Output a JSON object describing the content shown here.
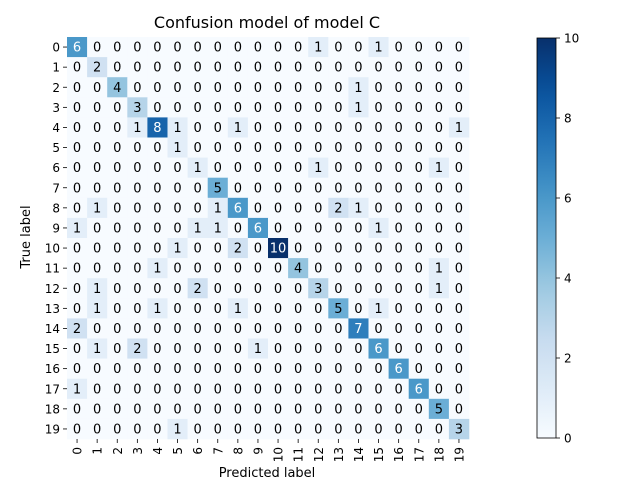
{
  "chart_data": {
    "type": "heatmap",
    "title": "Confusion model of model C",
    "xlabel": "Predicted label",
    "ylabel": "True label",
    "labels": [
      "0",
      "1",
      "2",
      "3",
      "4",
      "5",
      "6",
      "7",
      "8",
      "9",
      "10",
      "11",
      "12",
      "13",
      "14",
      "15",
      "16",
      "17",
      "18",
      "19"
    ],
    "matrix": [
      [
        6,
        0,
        0,
        0,
        0,
        0,
        0,
        0,
        0,
        0,
        0,
        0,
        1,
        0,
        0,
        1,
        0,
        0,
        0,
        0
      ],
      [
        0,
        2,
        0,
        0,
        0,
        0,
        0,
        0,
        0,
        0,
        0,
        0,
        0,
        0,
        0,
        0,
        0,
        0,
        0,
        0
      ],
      [
        0,
        0,
        4,
        0,
        0,
        0,
        0,
        0,
        0,
        0,
        0,
        0,
        0,
        0,
        1,
        0,
        0,
        0,
        0,
        0
      ],
      [
        0,
        0,
        0,
        3,
        0,
        0,
        0,
        0,
        0,
        0,
        0,
        0,
        0,
        0,
        1,
        0,
        0,
        0,
        0,
        0
      ],
      [
        0,
        0,
        0,
        1,
        8,
        1,
        0,
        0,
        1,
        0,
        0,
        0,
        0,
        0,
        0,
        0,
        0,
        0,
        0,
        1
      ],
      [
        0,
        0,
        0,
        0,
        0,
        1,
        0,
        0,
        0,
        0,
        0,
        0,
        0,
        0,
        0,
        0,
        0,
        0,
        0,
        0
      ],
      [
        0,
        0,
        0,
        0,
        0,
        0,
        1,
        0,
        0,
        0,
        0,
        0,
        1,
        0,
        0,
        0,
        0,
        0,
        1,
        0
      ],
      [
        0,
        0,
        0,
        0,
        0,
        0,
        0,
        5,
        0,
        0,
        0,
        0,
        0,
        0,
        0,
        0,
        0,
        0,
        0,
        0
      ],
      [
        0,
        1,
        0,
        0,
        0,
        0,
        0,
        1,
        6,
        0,
        0,
        0,
        0,
        2,
        1,
        0,
        0,
        0,
        0,
        0
      ],
      [
        1,
        0,
        0,
        0,
        0,
        0,
        1,
        1,
        0,
        6,
        0,
        0,
        0,
        0,
        0,
        1,
        0,
        0,
        0,
        0
      ],
      [
        0,
        0,
        0,
        0,
        0,
        1,
        0,
        0,
        2,
        0,
        10,
        0,
        0,
        0,
        0,
        0,
        0,
        0,
        0,
        0
      ],
      [
        0,
        0,
        0,
        0,
        1,
        0,
        0,
        0,
        0,
        0,
        0,
        4,
        0,
        0,
        0,
        0,
        0,
        0,
        1,
        0
      ],
      [
        0,
        1,
        0,
        0,
        0,
        0,
        2,
        0,
        0,
        0,
        0,
        0,
        3,
        0,
        0,
        0,
        0,
        0,
        1,
        0
      ],
      [
        0,
        1,
        0,
        0,
        1,
        0,
        0,
        0,
        1,
        0,
        0,
        0,
        0,
        5,
        0,
        1,
        0,
        0,
        0,
        0
      ],
      [
        2,
        0,
        0,
        0,
        0,
        0,
        0,
        0,
        0,
        0,
        0,
        0,
        0,
        0,
        7,
        0,
        0,
        0,
        0,
        0
      ],
      [
        0,
        1,
        0,
        2,
        0,
        0,
        0,
        0,
        0,
        1,
        0,
        0,
        0,
        0,
        0,
        6,
        0,
        0,
        0,
        0
      ],
      [
        0,
        0,
        0,
        0,
        0,
        0,
        0,
        0,
        0,
        0,
        0,
        0,
        0,
        0,
        0,
        0,
        6,
        0,
        0,
        0
      ],
      [
        1,
        0,
        0,
        0,
        0,
        0,
        0,
        0,
        0,
        0,
        0,
        0,
        0,
        0,
        0,
        0,
        0,
        6,
        0,
        0
      ],
      [
        0,
        0,
        0,
        0,
        0,
        0,
        0,
        0,
        0,
        0,
        0,
        0,
        0,
        0,
        0,
        0,
        0,
        0,
        5,
        0
      ],
      [
        0,
        0,
        0,
        0,
        0,
        1,
        0,
        0,
        0,
        0,
        0,
        0,
        0,
        0,
        0,
        0,
        0,
        0,
        0,
        3
      ]
    ],
    "colormap": "Blues",
    "colorbar": {
      "min": 0,
      "max": 10,
      "ticks": [
        "0",
        "2",
        "4",
        "6",
        "8",
        "10"
      ]
    },
    "colors": {
      "low": "#f7fbff",
      "high": "#08306b"
    }
  }
}
